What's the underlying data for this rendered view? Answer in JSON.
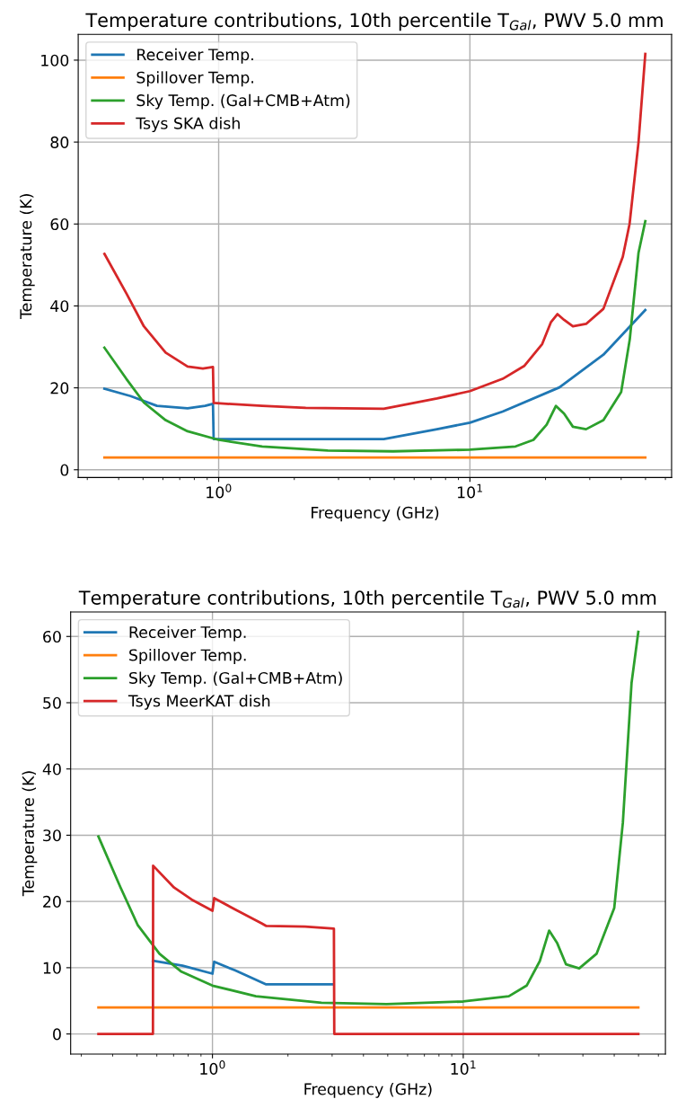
{
  "chart_data": [
    {
      "type": "line",
      "title": "Temperature contributions, 10th percentile T$_{Gal}$, PWV 5.0 mm",
      "xlabel": "Frequency (GHz)",
      "ylabel": "Temperature (K)",
      "log": "x",
      "grid": true,
      "legend": "top left",
      "line_style": "solid",
      "marker": "none",
      "xlim": [
        0.276,
        63.5
      ],
      "ylim": [
        -1.9,
        106.3
      ],
      "xticks": [
        {
          "value": 0.3,
          "label": null
        },
        {
          "value": 0.4,
          "label": null
        },
        {
          "value": 0.5,
          "label": null
        },
        {
          "value": 0.6,
          "label": null
        },
        {
          "value": 0.7,
          "label": null
        },
        {
          "value": 0.8,
          "label": null
        },
        {
          "value": 0.9,
          "label": null
        },
        {
          "value": 1,
          "label": "10$^{0}$"
        },
        {
          "value": 2,
          "label": null
        },
        {
          "value": 3,
          "label": null
        },
        {
          "value": 4,
          "label": null
        },
        {
          "value": 5,
          "label": null
        },
        {
          "value": 6,
          "label": null
        },
        {
          "value": 7,
          "label": null
        },
        {
          "value": 8,
          "label": null
        },
        {
          "value": 9,
          "label": null
        },
        {
          "value": 10,
          "label": "10$^{1}$"
        },
        {
          "value": 20,
          "label": null
        },
        {
          "value": 30,
          "label": null
        },
        {
          "value": 40,
          "label": null
        },
        {
          "value": 50,
          "label": null
        },
        {
          "value": 60,
          "label": null
        }
      ],
      "yticks": [
        0,
        20,
        40,
        60,
        80,
        100
      ],
      "series": [
        {
          "name": "Receiver Temp.",
          "color": "#1f77b4",
          "x": [
            0.351,
            0.446,
            0.568,
            0.752,
            0.883,
            0.949,
            0.955,
            4.54,
            7.4,
            10,
            13.5,
            22.7,
            34,
            49.9
          ],
          "values": [
            19.8,
            18,
            15.6,
            15.0,
            15.6,
            16.1,
            7.5,
            7.5,
            9.9,
            11.5,
            14.2,
            20.1,
            28.1,
            39
          ]
        },
        {
          "name": "Spillover Temp.",
          "color": "#ff7f0e",
          "x": [
            0.351,
            49.9
          ],
          "values": [
            3,
            3
          ]
        },
        {
          "name": "Sky Temp. (Gal+CMB+Atm)",
          "color": "#2ca02c",
          "x": [
            0.351,
            0.429,
            0.504,
            0.615,
            0.752,
            1.0,
            1.49,
            2.72,
            4.95,
            10,
            15.2,
            17.9,
            20.2,
            22.0,
            23.7,
            25.7,
            29,
            34,
            40,
            43.3,
            46.9,
            49.9
          ],
          "values": [
            29.8,
            22.2,
            16.4,
            12.1,
            9.4,
            7.3,
            5.7,
            4.7,
            4.5,
            4.9,
            5.7,
            7.3,
            11,
            15.6,
            13.7,
            10.5,
            9.9,
            12.1,
            19,
            31.9,
            53,
            60.7
          ]
        },
        {
          "name": "Tsys SKA dish",
          "color": "#d62728",
          "x": [
            0.351,
            0.429,
            0.504,
            0.615,
            0.752,
            0.865,
            0.949,
            0.955,
            1.49,
            2.22,
            4.54,
            7.4,
            10,
            13.5,
            16.5,
            19.4,
            21.0,
            22.3,
            23.7,
            25.7,
            29,
            34,
            40.6,
            43.2,
            46.9,
            49.9
          ],
          "values": [
            52.7,
            43.1,
            35,
            28.6,
            25.2,
            24.7,
            25.1,
            16.3,
            15.6,
            15.1,
            14.9,
            17.4,
            19.2,
            22.2,
            25.4,
            30.7,
            36,
            38,
            36.6,
            35,
            35.6,
            39.3,
            52,
            60,
            80,
            101.5
          ]
        }
      ]
    },
    {
      "type": "line",
      "title": "Temperature contributions, 10th percentile T$_{Gal}$, PWV 5.0 mm",
      "xlabel": "Frequency (GHz)",
      "ylabel": "Temperature (K)",
      "log": "x",
      "grid": true,
      "legend": "top left",
      "line_style": "solid",
      "marker": "none",
      "xlim": [
        0.272,
        64
      ],
      "ylim": [
        -3.03,
        63.7
      ],
      "xticks": [
        {
          "value": 0.3,
          "label": null
        },
        {
          "value": 0.4,
          "label": null
        },
        {
          "value": 0.5,
          "label": null
        },
        {
          "value": 0.6,
          "label": null
        },
        {
          "value": 0.7,
          "label": null
        },
        {
          "value": 0.8,
          "label": null
        },
        {
          "value": 0.9,
          "label": null
        },
        {
          "value": 1,
          "label": "10$^{0}$"
        },
        {
          "value": 2,
          "label": null
        },
        {
          "value": 3,
          "label": null
        },
        {
          "value": 4,
          "label": null
        },
        {
          "value": 5,
          "label": null
        },
        {
          "value": 6,
          "label": null
        },
        {
          "value": 7,
          "label": null
        },
        {
          "value": 8,
          "label": null
        },
        {
          "value": 9,
          "label": null
        },
        {
          "value": 10,
          "label": "10$^{1}$"
        },
        {
          "value": 20,
          "label": null
        },
        {
          "value": 30,
          "label": null
        },
        {
          "value": 40,
          "label": null
        },
        {
          "value": 50,
          "label": null
        },
        {
          "value": 60,
          "label": null
        }
      ],
      "yticks": [
        0,
        10,
        20,
        30,
        40,
        50,
        60
      ],
      "series": [
        {
          "name": "Receiver Temp.",
          "color": "#1f77b4",
          "x": [
            0.579,
            0.76,
            1.0,
            1.016,
            1.23,
            1.63,
            3.0
          ],
          "values": [
            11.05,
            10.3,
            9.1,
            10.9,
            9.6,
            7.5,
            7.5
          ]
        },
        {
          "name": "Spillover Temp.",
          "color": "#ff7f0e",
          "x": [
            0.351,
            49.9
          ],
          "values": [
            4,
            4
          ]
        },
        {
          "name": "Sky Temp. (Gal+CMB+Atm)",
          "color": "#2ca02c",
          "x": [
            0.351,
            0.429,
            0.504,
            0.615,
            0.752,
            1.0,
            1.49,
            2.72,
            4.95,
            10,
            15.2,
            17.9,
            20.2,
            22.0,
            23.7,
            25.7,
            29,
            34,
            40,
            43.3,
            46.9,
            49.9
          ],
          "values": [
            29.8,
            22.2,
            16.4,
            12.1,
            9.4,
            7.3,
            5.7,
            4.7,
            4.5,
            4.9,
            5.7,
            7.3,
            11,
            15.6,
            13.7,
            10.5,
            9.9,
            12.1,
            19,
            31.9,
            53,
            60.7
          ]
        },
        {
          "name": "Tsys MeerKAT dish",
          "color": "#d62728",
          "x": [
            0.351,
            0.579,
            0.58,
            0.703,
            0.825,
            1.0,
            1.016,
            1.23,
            1.57,
            1.64,
            2.34,
            3.05,
            3.06,
            49.9
          ],
          "values": [
            0,
            0,
            25.4,
            22.1,
            20.3,
            18.6,
            20.5,
            18.8,
            16.7,
            16.3,
            16.2,
            15.9,
            0,
            0
          ]
        }
      ]
    }
  ]
}
